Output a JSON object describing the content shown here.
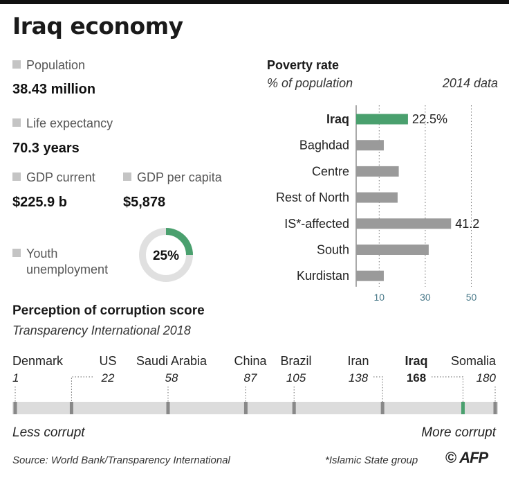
{
  "title": "Iraq economy",
  "stats": {
    "population": {
      "label": "Population",
      "value": "38.43 million"
    },
    "life_expectancy": {
      "label": "Life expectancy",
      "value": "70.3 years"
    },
    "gdp_current": {
      "label": "GDP current",
      "value": "$225.9 b"
    },
    "gdp_per_capita": {
      "label": "GDP per capita",
      "value": "$5,878"
    },
    "youth_unemployment": {
      "label_line1": "Youth",
      "label_line2": "unemployment",
      "value_label": "25%",
      "value": 25
    }
  },
  "colors": {
    "accent": "#4aa06e",
    "bar": "#9a9a9a",
    "track": "#e0e0e0",
    "tick": "#4a7a8a"
  },
  "chart_data": [
    {
      "type": "bar",
      "orientation": "horizontal",
      "title": "Poverty rate",
      "subtitle": "% of population",
      "note": "2014 data",
      "categories": [
        "Iraq",
        "Baghdad",
        "Centre",
        "Rest of North",
        "IS*-affected",
        "South",
        "Kurdistan"
      ],
      "values": [
        22.5,
        12,
        18.5,
        18,
        41.2,
        31.5,
        12
      ],
      "value_labels": [
        "22.5%",
        "",
        "",
        "",
        "41.2",
        "",
        ""
      ],
      "highlight": "Iraq",
      "xticks": [
        10,
        30,
        50
      ],
      "xlim": [
        0,
        50
      ],
      "grid": true
    },
    {
      "type": "scatter",
      "title": "Perception of corruption score",
      "subtitle": "Transparency International 2018",
      "xlim": [
        1,
        180
      ],
      "points": [
        {
          "name": "Denmark",
          "rank": 1,
          "rank_label": "1"
        },
        {
          "name": "US",
          "rank": 22,
          "rank_label": "22"
        },
        {
          "name": "Saudi Arabia",
          "rank": 58,
          "rank_label": "58"
        },
        {
          "name": "China",
          "rank": 87,
          "rank_label": "87"
        },
        {
          "name": "Brazil",
          "rank": 105,
          "rank_label": "105"
        },
        {
          "name": "Iran",
          "rank": 138,
          "rank_label": "138"
        },
        {
          "name": "Iraq",
          "rank": 168,
          "rank_label": "168"
        },
        {
          "name": "Somalia",
          "rank": 180,
          "rank_label": "180"
        }
      ],
      "highlight": "Iraq",
      "left_label": "Less corrupt",
      "right_label": "More corrupt"
    }
  ],
  "footer": {
    "source": "Source: World Bank/Transparency International",
    "note": "*Islamic State group",
    "copyright_symbol": "©",
    "logo": "AFP"
  }
}
